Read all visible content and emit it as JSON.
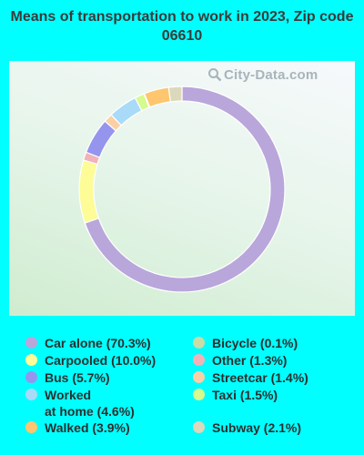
{
  "title": "Means of transportation to work in 2023, Zip code 06610",
  "watermark": "City-Data.com",
  "chart_data": {
    "type": "pie",
    "style": "donut",
    "slices": [
      {
        "label": "Car alone",
        "display": "Car alone (70.3%)",
        "value": 70.3,
        "color": "#b9a6da"
      },
      {
        "label": "Carpooled",
        "display": "Carpooled (10.0%)",
        "value": 10.0,
        "color": "#fdfc97"
      },
      {
        "label": "Other",
        "display": "Other (1.3%)",
        "value": 1.3,
        "color": "#f2b3b8"
      },
      {
        "label": "Bus",
        "display": "Bus (5.7%)",
        "value": 5.7,
        "color": "#9595ee"
      },
      {
        "label": "Streetcar",
        "display": "Streetcar (1.4%)",
        "value": 1.4,
        "color": "#fbd0a6"
      },
      {
        "label": "Worked at home",
        "display": "Worked\nat home (4.6%)",
        "value": 4.6,
        "color": "#a9daf8"
      },
      {
        "label": "Taxi",
        "display": "Taxi (1.5%)",
        "value": 1.5,
        "color": "#d6fa8e"
      },
      {
        "label": "Bicycle",
        "display": "Bicycle (0.1%)",
        "value": 0.1,
        "color": "#c9dba7"
      },
      {
        "label": "Walked",
        "display": "Walked (3.9%)",
        "value": 3.9,
        "color": "#fdc66f"
      },
      {
        "label": "Subway",
        "display": "Subway (2.1%)",
        "value": 2.1,
        "color": "#dcd8bb"
      }
    ],
    "legend_order": [
      "Car alone",
      "Carpooled",
      "Bus",
      "Worked at home",
      "Walked",
      "Bicycle",
      "Other",
      "Streetcar",
      "Taxi",
      "Subway"
    ]
  }
}
